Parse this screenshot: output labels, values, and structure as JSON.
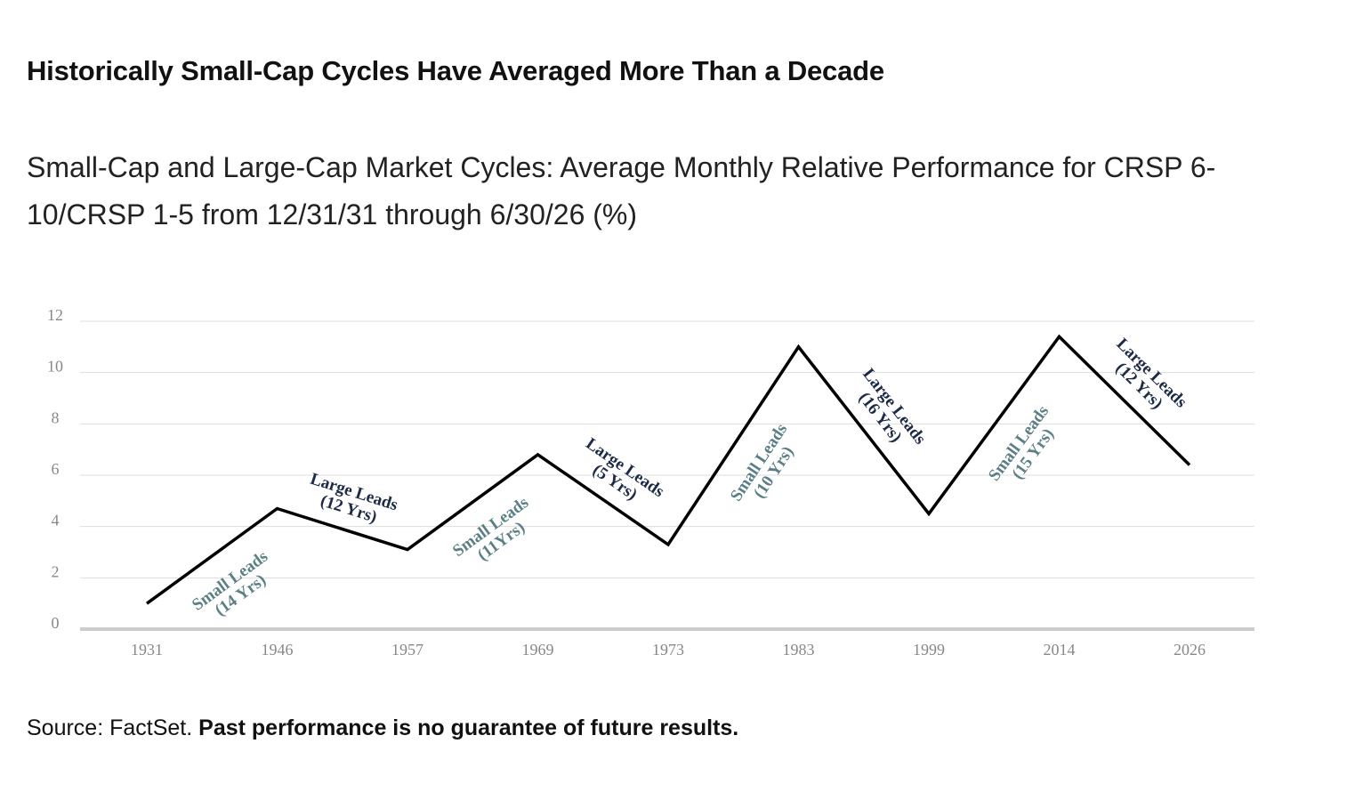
{
  "title": "Historically Small-Cap Cycles Have Averaged More Than a Decade",
  "subtitle": "Small-Cap and Large-Cap Market Cycles: Average Monthly Relative Performance for CRSP 6-10/CRSP 1-5 from 12/31/31 through 6/30/26 (%)",
  "source": {
    "prefix": "Source: FactSet.",
    "disclaimer": "Past performance is no guarantee of future results."
  },
  "colors": {
    "line": "#000000",
    "grid": "#dddddd",
    "baseline": "#cccccc",
    "small_label": "#5b7f86",
    "large_label": "#1c2a45"
  },
  "chart_data": {
    "type": "line",
    "x": [
      "1931",
      "1946",
      "1957",
      "1969",
      "1973",
      "1983",
      "1999",
      "2014",
      "2026"
    ],
    "series": [
      {
        "values": [
          1.0,
          4.7,
          3.1,
          6.8,
          3.3,
          11.0,
          4.5,
          11.4,
          6.4
        ]
      }
    ],
    "ylim": [
      0,
      12
    ],
    "yticks": [
      0,
      2,
      4,
      6,
      8,
      10,
      12
    ],
    "grid": true,
    "annotations": [
      {
        "line1": "Small Leads",
        "line2": "(14 Yrs)",
        "kind": "small",
        "segment": 0
      },
      {
        "line1": "Large Leads",
        "line2": "(12 Yrs)",
        "kind": "large",
        "segment": 1
      },
      {
        "line1": "Small Leads",
        "line2": "(11Yrs)",
        "kind": "small",
        "segment": 2
      },
      {
        "line1": "Large Leads",
        "line2": "(5 Yrs)",
        "kind": "large",
        "segment": 3
      },
      {
        "line1": "Small Leads",
        "line2": "(10 Yrs)",
        "kind": "small",
        "segment": 4
      },
      {
        "line1": "Large Leads",
        "line2": "(16 Yrs)",
        "kind": "large",
        "segment": 5
      },
      {
        "line1": "Small Leads",
        "line2": "(15 Yrs)",
        "kind": "small",
        "segment": 6
      },
      {
        "line1": "Large Leads",
        "line2": "(12 Yrs)",
        "kind": "large",
        "segment": 7
      }
    ]
  }
}
